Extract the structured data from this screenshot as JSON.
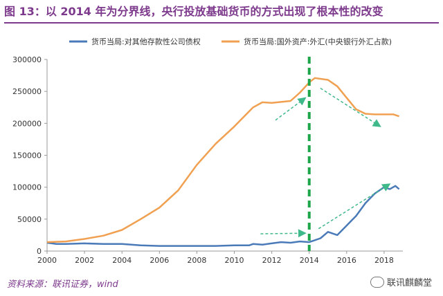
{
  "title": "图 13：以 2014 年为分界线，央行投放基础货币的方式出现了根本性的改变",
  "source": "资料来源：联讯证券，wind",
  "watermark": "联讯麒麟堂",
  "chart_data": {
    "type": "line",
    "title": "",
    "xlabel": "",
    "ylabel": "",
    "xlim": [
      2000,
      2019
    ],
    "ylim": [
      0,
      300000
    ],
    "xticks": [
      "2000",
      "2002",
      "2004",
      "2006",
      "2008",
      "2010",
      "2012",
      "2014",
      "2016",
      "2018"
    ],
    "yticks": [
      "0",
      "50000",
      "100000",
      "150000",
      "200000",
      "250000",
      "300000"
    ],
    "grid": false,
    "legend_position": "top",
    "colors": {
      "blue": "#4a7ab8",
      "orange": "#f0a050",
      "green": "#1fa64a",
      "arrow": "#3fb88a"
    },
    "series": [
      {
        "name": "货币当局:对其他存款性公司债权",
        "color": "#4a7ab8",
        "x": [
          2000,
          2000.5,
          2001,
          2002,
          2003,
          2004,
          2005,
          2006,
          2007,
          2008,
          2009,
          2010,
          2010.8,
          2011,
          2011.5,
          2012,
          2012.5,
          2013,
          2013.5,
          2014,
          2014.3,
          2014.6,
          2015,
          2015.5,
          2016,
          2016.5,
          2017,
          2017.5,
          2018,
          2018.3,
          2018.6,
          2018.8
        ],
        "y": [
          13000,
          11000,
          11000,
          12000,
          11000,
          11000,
          9000,
          8000,
          8000,
          8000,
          8000,
          9000,
          9000,
          11000,
          10000,
          12000,
          14000,
          13000,
          15000,
          14000,
          17000,
          20000,
          30000,
          25000,
          40000,
          55000,
          75000,
          90000,
          100000,
          97000,
          102000,
          97000
        ]
      },
      {
        "name": "货币当局:国外资产:外汇(中央银行外汇占款)",
        "color": "#f0a050",
        "x": [
          2000,
          2001,
          2002,
          2003,
          2004,
          2005,
          2006,
          2007,
          2008,
          2009,
          2010,
          2011,
          2011.5,
          2012,
          2013,
          2013.5,
          2014,
          2014.3,
          2015,
          2015.5,
          2016,
          2016.5,
          2017,
          2017.5,
          2018,
          2018.5,
          2018.8
        ],
        "y": [
          14000,
          15000,
          19000,
          24000,
          33000,
          50000,
          68000,
          95000,
          135000,
          168000,
          195000,
          225000,
          233000,
          232000,
          235000,
          248000,
          264000,
          271000,
          268000,
          258000,
          240000,
          222000,
          215000,
          214000,
          214000,
          214000,
          211000
        ]
      }
    ],
    "divider": {
      "x": 2014
    },
    "annotations": [
      {
        "from": [
          2012.2,
          205000
        ],
        "to": [
          2013.8,
          240000
        ]
      },
      {
        "from": [
          2014.6,
          255000
        ],
        "to": [
          2017.8,
          195000
        ]
      },
      {
        "from": [
          2011.4,
          27000
        ],
        "to": [
          2013.8,
          28000
        ]
      },
      {
        "from": [
          2014.5,
          35000
        ],
        "to": [
          2018.3,
          105000
        ]
      }
    ]
  }
}
